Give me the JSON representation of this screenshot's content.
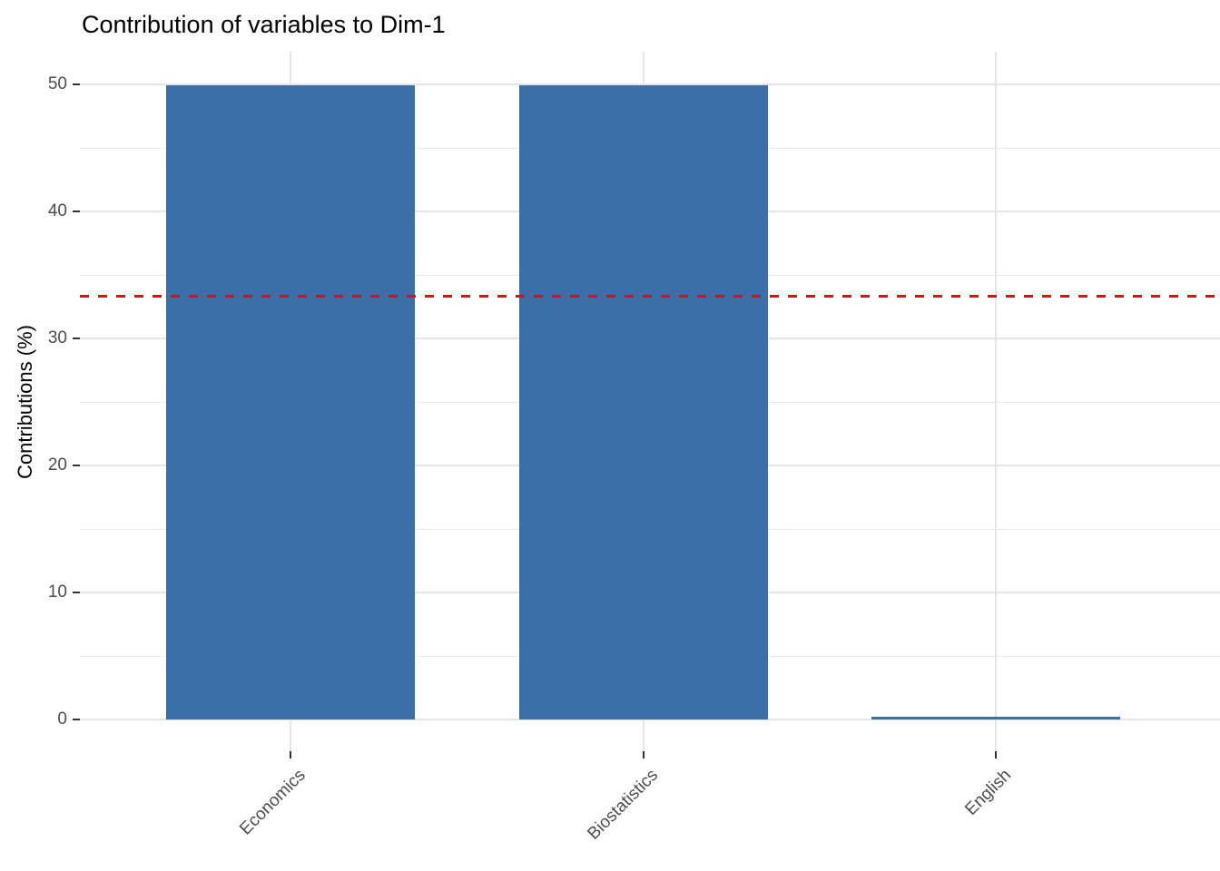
{
  "chart_data": {
    "type": "bar",
    "title": "Contribution of variables to Dim-1",
    "xlabel": "",
    "ylabel": "Contributions (%)",
    "categories": [
      "Economics",
      "Biostatistics",
      "English"
    ],
    "values": [
      49.95,
      49.95,
      0.1
    ],
    "yticks": [
      0,
      10,
      20,
      30,
      40,
      50
    ],
    "yticks_minor": [
      5,
      15,
      25,
      35,
      45
    ],
    "ylim": [
      0,
      52.5
    ],
    "grid": true,
    "legend": "none",
    "bar_color": "#3a6fa8",
    "background_color": "#ffffff",
    "grid_color": "#e5e5e5",
    "tick_label_color": "#4d4d4d",
    "reference_line": {
      "value": 33.33,
      "color": "#ff0000",
      "style": "dashed"
    }
  }
}
